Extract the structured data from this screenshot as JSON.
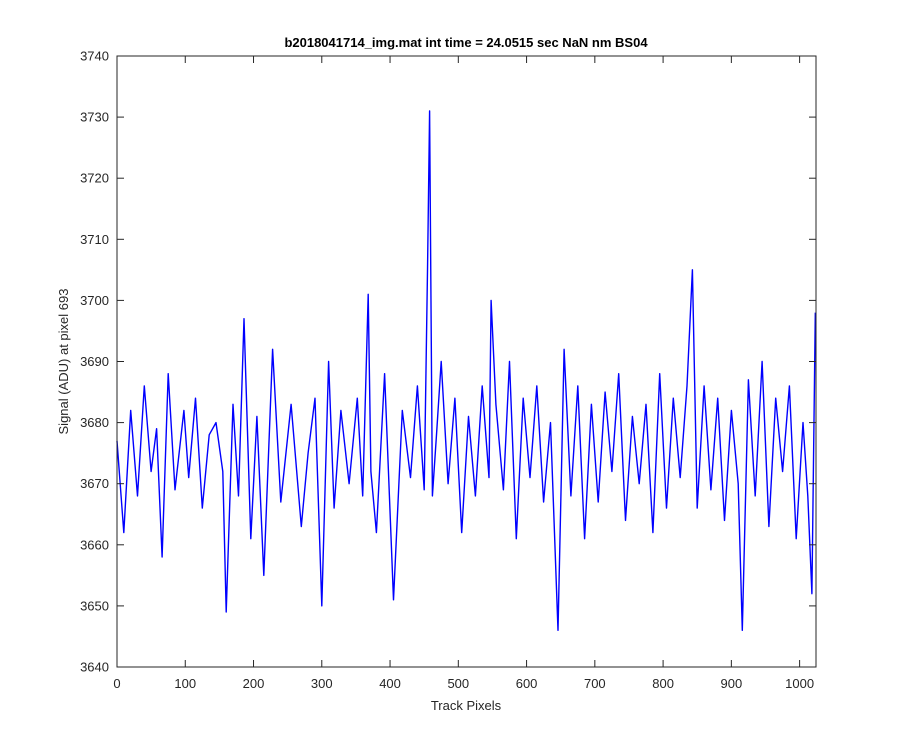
{
  "chart_data": {
    "type": "line",
    "title": "b2018041714_img.mat int time = 24.0515 sec  NaN nm BS04",
    "xlabel": "Track Pixels",
    "ylabel": "Signal (ADU) at pixel 693",
    "xlim": [
      0,
      1024
    ],
    "ylim": [
      3640,
      3740
    ],
    "xticks": [
      0,
      100,
      200,
      300,
      400,
      500,
      600,
      700,
      800,
      900,
      1000
    ],
    "yticks": [
      3640,
      3650,
      3660,
      3670,
      3680,
      3690,
      3700,
      3710,
      3720,
      3730,
      3740
    ],
    "grid": false,
    "legend": "none",
    "line_color": "#0000ff",
    "series": [
      {
        "x": [
          0,
          10,
          20,
          30,
          40,
          50,
          58,
          66,
          75,
          85,
          98,
          105,
          115,
          125,
          135,
          145,
          155,
          160,
          170,
          178,
          186,
          196,
          205,
          215,
          228,
          240,
          255,
          270,
          280,
          290,
          300,
          310,
          318,
          328,
          340,
          352,
          360,
          368,
          372,
          380,
          392,
          405,
          418,
          430,
          440,
          450,
          455,
          458,
          462,
          468,
          475,
          485,
          495,
          505,
          515,
          525,
          535,
          545,
          548,
          555,
          566,
          575,
          585,
          595,
          605,
          615,
          625,
          635,
          646,
          655,
          665,
          675,
          685,
          695,
          705,
          715,
          725,
          735,
          745,
          755,
          765,
          775,
          785,
          795,
          805,
          815,
          825,
          835,
          843,
          850,
          860,
          870,
          880,
          890,
          900,
          910,
          916,
          925,
          935,
          945,
          955,
          965,
          975,
          985,
          995,
          1005,
          1012,
          1018,
          1023
        ],
        "y": [
          3677,
          3662,
          3682,
          3668,
          3686,
          3672,
          3679,
          3658,
          3688,
          3669,
          3682,
          3671,
          3684,
          3666,
          3678,
          3680,
          3672,
          3649,
          3683,
          3668,
          3697,
          3661,
          3681,
          3655,
          3692,
          3667,
          3683,
          3663,
          3675,
          3684,
          3650,
          3690,
          3666,
          3682,
          3670,
          3684,
          3668,
          3701,
          3672,
          3662,
          3688,
          3651,
          3682,
          3671,
          3686,
          3669,
          3706,
          3731,
          3668,
          3678,
          3690,
          3670,
          3684,
          3662,
          3681,
          3668,
          3686,
          3671,
          3700,
          3683,
          3669,
          3690,
          3661,
          3684,
          3671,
          3686,
          3667,
          3680,
          3646,
          3692,
          3668,
          3686,
          3661,
          3683,
          3667,
          3685,
          3672,
          3688,
          3664,
          3681,
          3670,
          3683,
          3662,
          3688,
          3666,
          3684,
          3671,
          3686,
          3705,
          3666,
          3686,
          3669,
          3684,
          3664,
          3682,
          3670,
          3646,
          3687,
          3668,
          3690,
          3663,
          3684,
          3672,
          3686,
          3661,
          3680,
          3668,
          3652,
          3698
        ]
      }
    ]
  }
}
